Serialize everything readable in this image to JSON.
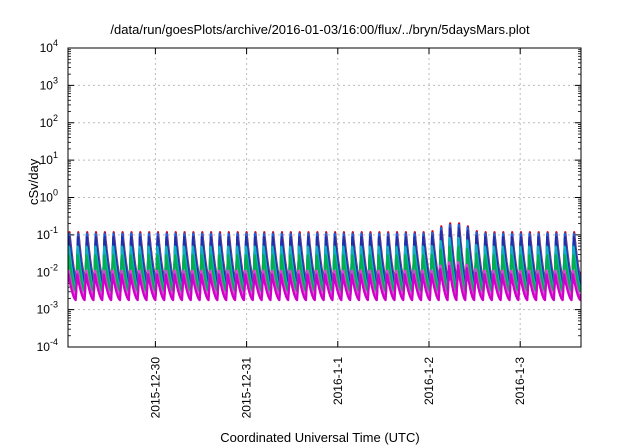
{
  "chart_data": {
    "type": "line",
    "title": "/data/run/goesPlots/archive/2016-01-03/16:00/flux/../bryn/5daysMars.plot",
    "xlabel": "Coordinated Universal Time (UTC)",
    "ylabel": "cSv/day",
    "yscale": "log",
    "ylim": [
      0.0001,
      10000
    ],
    "xlim": [
      "2015-12-29 01:00",
      "2016-01-03 16:00"
    ],
    "grid": true,
    "x_ticks": [
      {
        "date": "2015-12-30 00:00",
        "label": "2015-12-30"
      },
      {
        "date": "2015-12-31 00:00",
        "label": "2015-12-31"
      },
      {
        "date": "2016-01-01 00:00",
        "label": "2016-1-1"
      },
      {
        "date": "2016-01-02 00:00",
        "label": "2016-1-2"
      },
      {
        "date": "2016-01-03 00:00",
        "label": "2016-1-3"
      }
    ],
    "y_ticks": [
      {
        "value": 0.0001,
        "base": "10",
        "exp": "-4"
      },
      {
        "value": 0.001,
        "base": "10",
        "exp": "-3"
      },
      {
        "value": 0.01,
        "base": "10",
        "exp": "-2"
      },
      {
        "value": 0.1,
        "base": "10",
        "exp": "-1"
      },
      {
        "value": 1,
        "base": "10",
        "exp": "0"
      },
      {
        "value": 10,
        "base": "10",
        "exp": "1"
      },
      {
        "value": 100,
        "base": "10",
        "exp": "2"
      },
      {
        "value": 1000,
        "base": "10",
        "exp": "3"
      },
      {
        "value": 10000,
        "base": "10",
        "exp": "4"
      }
    ],
    "cycle_hours": 2.33,
    "disturbance": {
      "start": "2016-01-02 00:30",
      "end": "2016-01-02 13:00",
      "peak_factor": 1.8
    },
    "series": [
      {
        "color": "#d40000",
        "peak": 0.13,
        "trough": 0.006
      },
      {
        "color": "#2060e0",
        "peak": 0.12,
        "trough": 0.0055
      },
      {
        "color": "#1f2fa8",
        "peak": 0.095,
        "trough": 0.0045
      },
      {
        "color": "#10b0c0",
        "peak": 0.055,
        "trough": 0.0035
      },
      {
        "color": "#00b050",
        "peak": 0.03,
        "trough": 0.003
      },
      {
        "color": "#e040e0",
        "peak": 0.012,
        "trough": 0.0022
      },
      {
        "color": "#d000c8",
        "peak": 0.009,
        "trough": 0.0018
      }
    ]
  }
}
